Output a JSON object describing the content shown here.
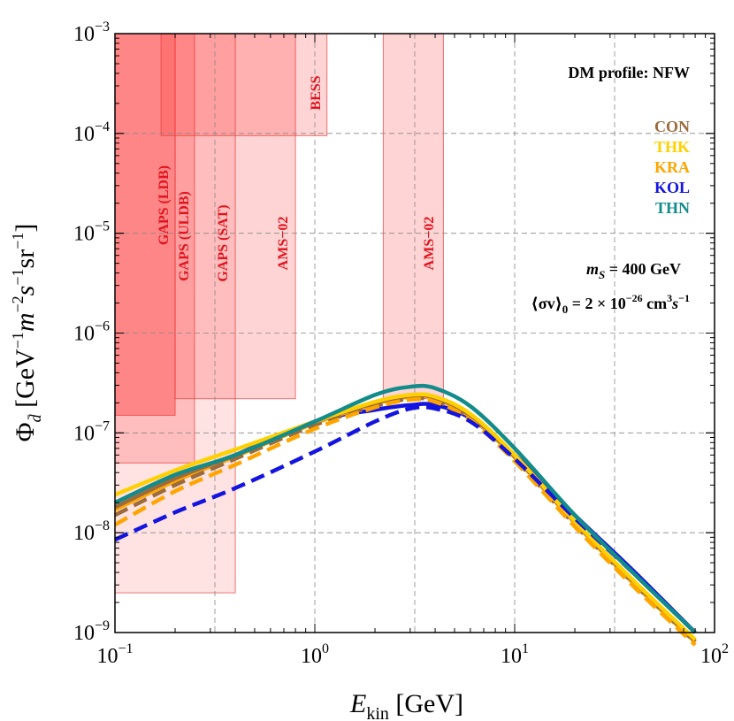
{
  "chart_data": {
    "type": "line",
    "x_scale": "log",
    "y_scale": "log",
    "xlim": [
      0.1,
      100
    ],
    "ylim": [
      1e-09,
      0.001
    ],
    "x_tick_labels": [
      {
        "value": 0.1,
        "base": "10",
        "exp": "−1"
      },
      {
        "value": 1,
        "base": "10",
        "exp": "0"
      },
      {
        "value": 10,
        "base": "10",
        "exp": "1"
      },
      {
        "value": 100,
        "base": "10",
        "exp": "2"
      }
    ],
    "y_tick_labels": [
      {
        "value": 1e-09,
        "base": "10",
        "exp": "−9"
      },
      {
        "value": 1e-08,
        "base": "10",
        "exp": "−8"
      },
      {
        "value": 1e-07,
        "base": "10",
        "exp": "−7"
      },
      {
        "value": 1e-06,
        "base": "10",
        "exp": "−6"
      },
      {
        "value": 1e-05,
        "base": "10",
        "exp": "−5"
      },
      {
        "value": 0.0001,
        "base": "10",
        "exp": "−4"
      },
      {
        "value": 0.001,
        "base": "10",
        "exp": "−3"
      }
    ],
    "xlabel": {
      "main": "E",
      "sub": "kin",
      "unit": " [GeV]"
    },
    "ylabel": {
      "phi": "Φ",
      "sub": "d̄",
      "gev": " [GeV",
      "m": "m",
      "s": "s",
      "sr": "sr",
      "exp_neg1": "−1",
      "exp_neg2": "−2",
      "close": "]"
    },
    "grid_x": [
      0.3162,
      1,
      3.162,
      10,
      31.62
    ],
    "grid_y": [
      1e-08,
      1e-07,
      1e-06,
      1e-05,
      0.0001
    ],
    "profile_text": "DM profile: NFW",
    "mass_text": {
      "lhs": "m",
      "sub": "S",
      "rhs": " = 400 GeV"
    },
    "sigma_text": {
      "lhs": "⟨σv⟩",
      "sub": "0",
      "mid": " = 2 × 10",
      "exp1": "−26",
      "unit": " cm",
      "exp2": "3",
      "s": "s",
      "exp3": "−1"
    },
    "exclusion_regions": [
      {
        "label": "GAPS (LDB)",
        "x_min": 0.1,
        "x_max": 0.2,
        "y_limit": 1.5e-07,
        "opacity": 0.36
      },
      {
        "label": "GAPS (ULDB)",
        "x_min": 0.1,
        "x_max": 0.25,
        "y_limit": 5e-08,
        "opacity": 0.2
      },
      {
        "label": "GAPS (SAT)",
        "x_min": 0.1,
        "x_max": 0.4,
        "y_limit": 2.5e-09,
        "opacity": 0.13
      },
      {
        "label": "AMS−02",
        "x_min": 0.2,
        "x_max": 0.8,
        "y_limit": 2.2e-07,
        "opacity": 0.2
      },
      {
        "label": "BESS",
        "x_min": 0.17,
        "x_max": 1.15,
        "y_limit": 9.5e-05,
        "opacity": 0.2
      },
      {
        "label": "AMS−02",
        "x_min": 2.2,
        "x_max": 4.4,
        "y_limit": 2.2e-07,
        "opacity": 0.2
      }
    ],
    "series": [
      {
        "name": "CON",
        "color": "#9c6b3c",
        "style": "dashed",
        "x": [
          0.1,
          0.2,
          0.4,
          1,
          2,
          3,
          4,
          6,
          10,
          20,
          40,
          80
        ],
        "y": [
          1.5e-08,
          3e-08,
          5.5e-08,
          1.2e-07,
          1.85e-07,
          2.2e-07,
          2.1e-07,
          1.4e-07,
          5.5e-08,
          1.2e-08,
          3e-09,
          8e-10
        ]
      },
      {
        "name": "THK",
        "color": "#ffd000",
        "style": "solid",
        "x": [
          0.1,
          0.2,
          0.4,
          1,
          2,
          3,
          4,
          6,
          10,
          20,
          40,
          80
        ],
        "y": [
          2.4e-08,
          4.2e-08,
          6.8e-08,
          1.3e-07,
          2.05e-07,
          2.4e-07,
          2.3e-07,
          1.55e-07,
          6e-08,
          1.3e-08,
          3.2e-09,
          8.5e-10
        ]
      },
      {
        "name": "KRA",
        "color": "#ffa500",
        "style": "dashed",
        "x": [
          0.1,
          0.2,
          0.4,
          1,
          2,
          3,
          4,
          6,
          10,
          20,
          40,
          80
        ],
        "y": [
          1.2e-08,
          2.6e-08,
          4.8e-08,
          1.1e-07,
          1.8e-07,
          2.15e-07,
          2.05e-07,
          1.35e-07,
          5.2e-08,
          1.15e-08,
          2.8e-09,
          7.5e-10
        ]
      },
      {
        "name": "KOL",
        "color": "#1414e0",
        "style": "dashed",
        "x": [
          0.1,
          0.2,
          0.4,
          1,
          2,
          3,
          4,
          6,
          10,
          20,
          40,
          80
        ],
        "y": [
          8.5e-09,
          1.6e-08,
          2.8e-08,
          6.5e-08,
          1.3e-07,
          1.75e-07,
          1.75e-07,
          1.3e-07,
          5.5e-08,
          1.4e-08,
          3.8e-09,
          1e-09
        ]
      },
      {
        "name": "THN",
        "color": "#138b8b",
        "style": "solid",
        "x": [
          0.1,
          0.2,
          0.4,
          1,
          2,
          3,
          4,
          6,
          10,
          20,
          40,
          80
        ],
        "y": [
          2e-08,
          3.8e-08,
          6e-08,
          1.3e-07,
          2.4e-07,
          2.9e-07,
          2.8e-07,
          1.85e-07,
          7e-08,
          1.5e-08,
          3.8e-09,
          1e-09
        ]
      }
    ],
    "extra_series": [
      {
        "name": "KOL",
        "color": "#1414e0",
        "style": "solid",
        "x": [
          0.4,
          1,
          2,
          3,
          4,
          6,
          10,
          20,
          40,
          80
        ],
        "y": [
          6e-08,
          1.3e-07,
          1.7e-07,
          1.9e-07,
          1.9e-07,
          1.4e-07,
          6e-08,
          1.5e-08,
          4e-09,
          1e-09
        ]
      },
      {
        "name": "KRA",
        "color": "#ffa500",
        "style": "solid",
        "x": [
          0.1,
          0.2,
          0.4,
          1,
          2,
          3,
          4,
          6,
          10,
          20,
          40,
          80
        ],
        "y": [
          1.7e-08,
          3.3e-08,
          5.8e-08,
          1.25e-07,
          1.95e-07,
          2.3e-07,
          2.2e-07,
          1.45e-07,
          5.7e-08,
          1.25e-08,
          3e-09,
          8e-10
        ]
      },
      {
        "name": "CON",
        "color": "#9c6b3c",
        "style": "solid",
        "x": [
          0.1,
          0.2,
          0.4,
          1,
          2,
          3,
          4,
          6,
          10,
          20,
          40,
          80
        ],
        "y": [
          1.8e-08,
          3.5e-08,
          6e-08,
          1.28e-07,
          2e-07,
          2.35e-07,
          2.25e-07,
          1.5e-07,
          5.8e-08,
          1.28e-08,
          3.1e-09,
          8.2e-10
        ]
      }
    ]
  }
}
